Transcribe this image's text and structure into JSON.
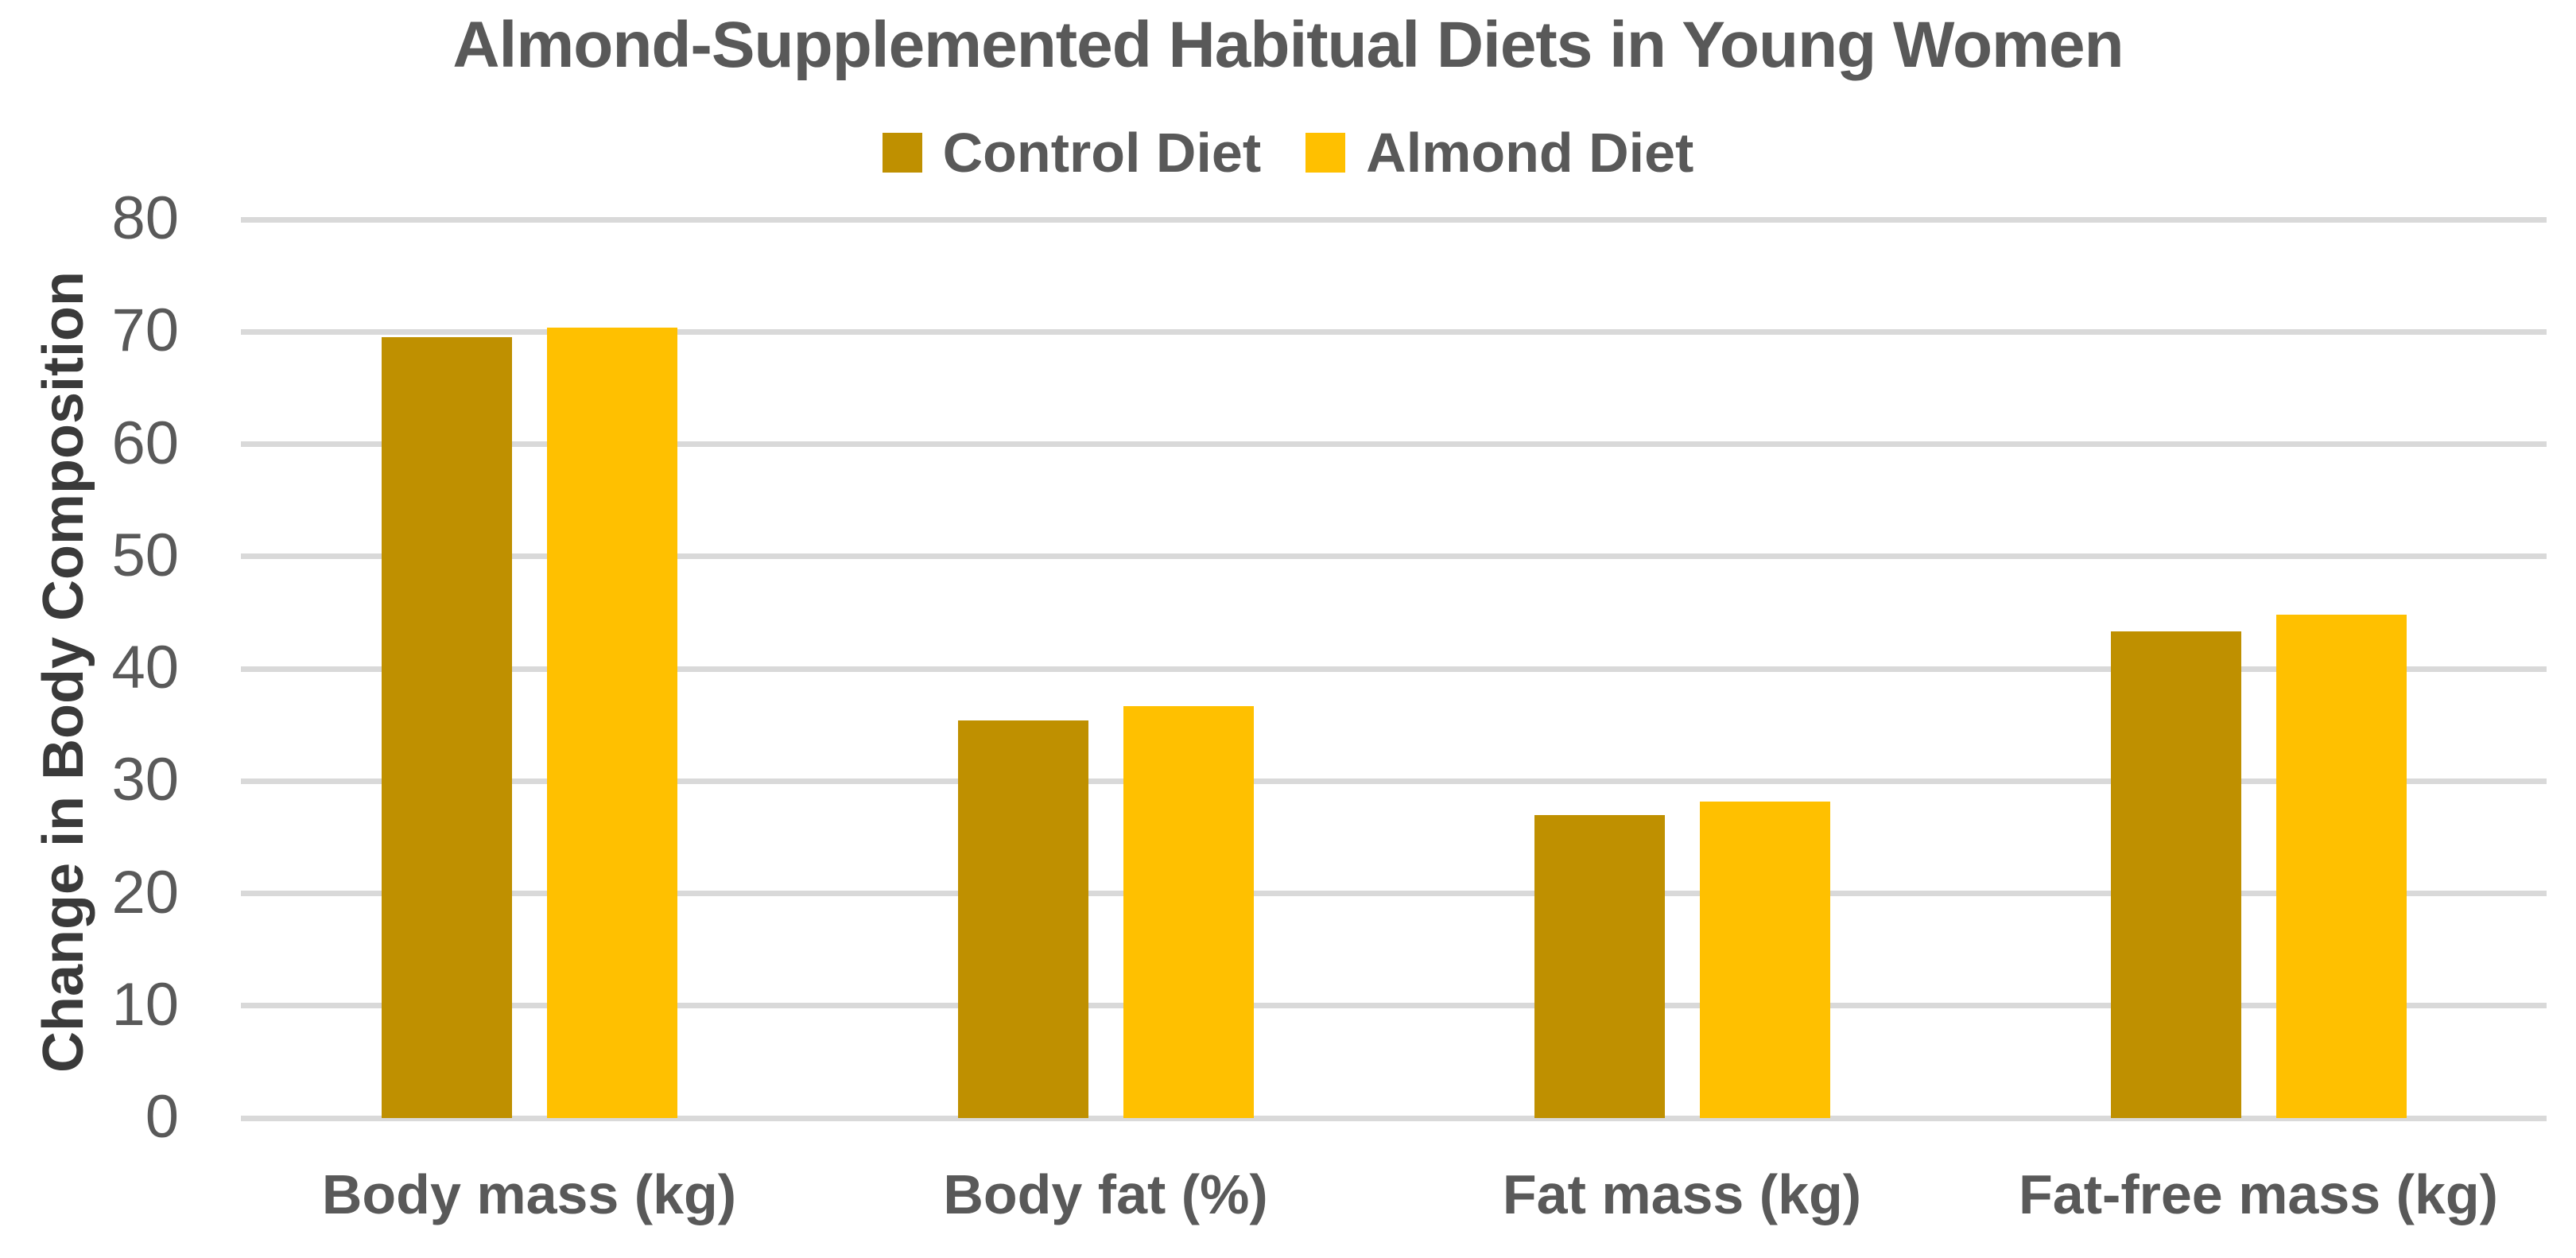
{
  "chart_data": {
    "type": "bar",
    "title": "Almond-Supplemented Habitual Diets in Young Women",
    "ylabel": "Change in Body Composition",
    "xlabel": "",
    "categories": [
      "Body mass (kg)",
      "Body fat (%)",
      "Fat mass (kg)",
      "Fat-free mass (kg)"
    ],
    "series": [
      {
        "name": "Control Diet",
        "color": "#BF9000",
        "values": [
          69.5,
          35.4,
          27.0,
          43.3
        ]
      },
      {
        "name": "Almond Diet",
        "color": "#FFC000",
        "values": [
          70.4,
          36.7,
          28.2,
          44.8
        ]
      }
    ],
    "ylim": [
      0,
      80
    ],
    "yticks": [
      0,
      10,
      20,
      30,
      40,
      50,
      60,
      70,
      80
    ],
    "grid": "horizontal",
    "legend_position": "top-center",
    "grid_color": "#D9D9D9",
    "text_color": "#595959",
    "axis_title_color": "#3A3A3A",
    "background": "#FFFFFF"
  }
}
